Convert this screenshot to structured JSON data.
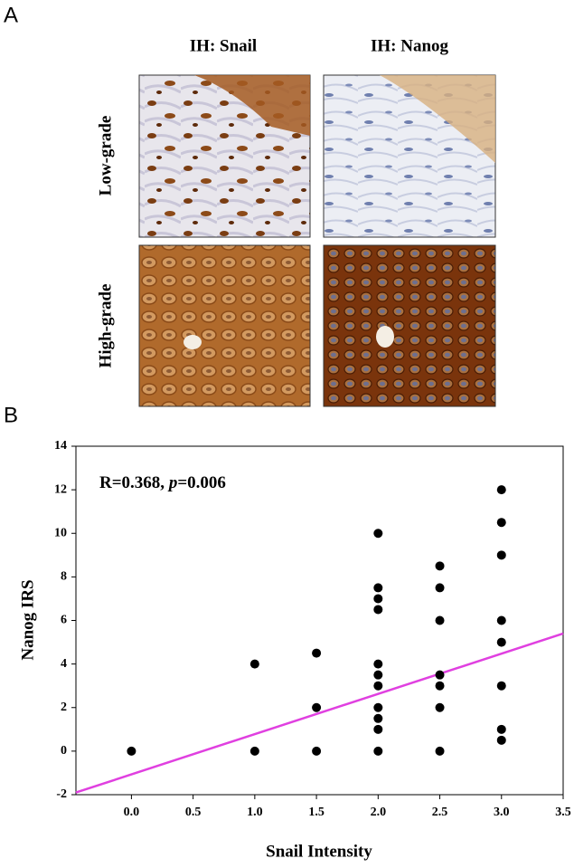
{
  "figure": {
    "panel_a_label": "A",
    "panel_b_label": "B",
    "column_headers": [
      "IH: Snail",
      "IH: Nanog"
    ],
    "row_headers": [
      "Low-grade",
      "High-grade"
    ]
  },
  "chart_data": {
    "type": "scatter",
    "xlabel": "Snail Intensity",
    "ylabel": "Nanog IRS",
    "annotation": {
      "prefix": "R=0.368, ",
      "italic": "p",
      "suffix": "=0.006"
    },
    "x": [
      0,
      1,
      1,
      1.5,
      1.5,
      1.5,
      2,
      2,
      2,
      2,
      2,
      2,
      2,
      2,
      2,
      2,
      2,
      2.5,
      2.5,
      2.5,
      2.5,
      2.5,
      2.5,
      2.5,
      3,
      3,
      3,
      3,
      3,
      3,
      3,
      3
    ],
    "values": [
      0,
      4,
      0,
      4.5,
      2,
      0,
      10,
      7.5,
      7,
      6.5,
      4,
      3.5,
      3,
      2,
      1.5,
      1,
      0,
      8.5,
      7.5,
      6,
      3.5,
      3,
      2,
      0,
      12,
      10.5,
      9,
      6,
      5,
      3,
      1,
      0.5
    ],
    "color": "#000000",
    "fit": {
      "x": [
        -0.45,
        3.5
      ],
      "y": [
        -1.9,
        5.4
      ],
      "color": "#e040e0"
    },
    "xlim": [
      -0.45,
      3.5
    ],
    "xticks": [
      {
        "value": 0,
        "label": "0.0"
      },
      0.5,
      {
        "value": 1,
        "label": "1.0"
      },
      1.5,
      {
        "value": 2,
        "label": "2.0"
      },
      2.5,
      {
        "value": 3,
        "label": "3.0"
      },
      3.5
    ],
    "ylim": [
      -2,
      14
    ],
    "yticks": [
      -2,
      0,
      2,
      4,
      6,
      8,
      10,
      12,
      14
    ]
  }
}
